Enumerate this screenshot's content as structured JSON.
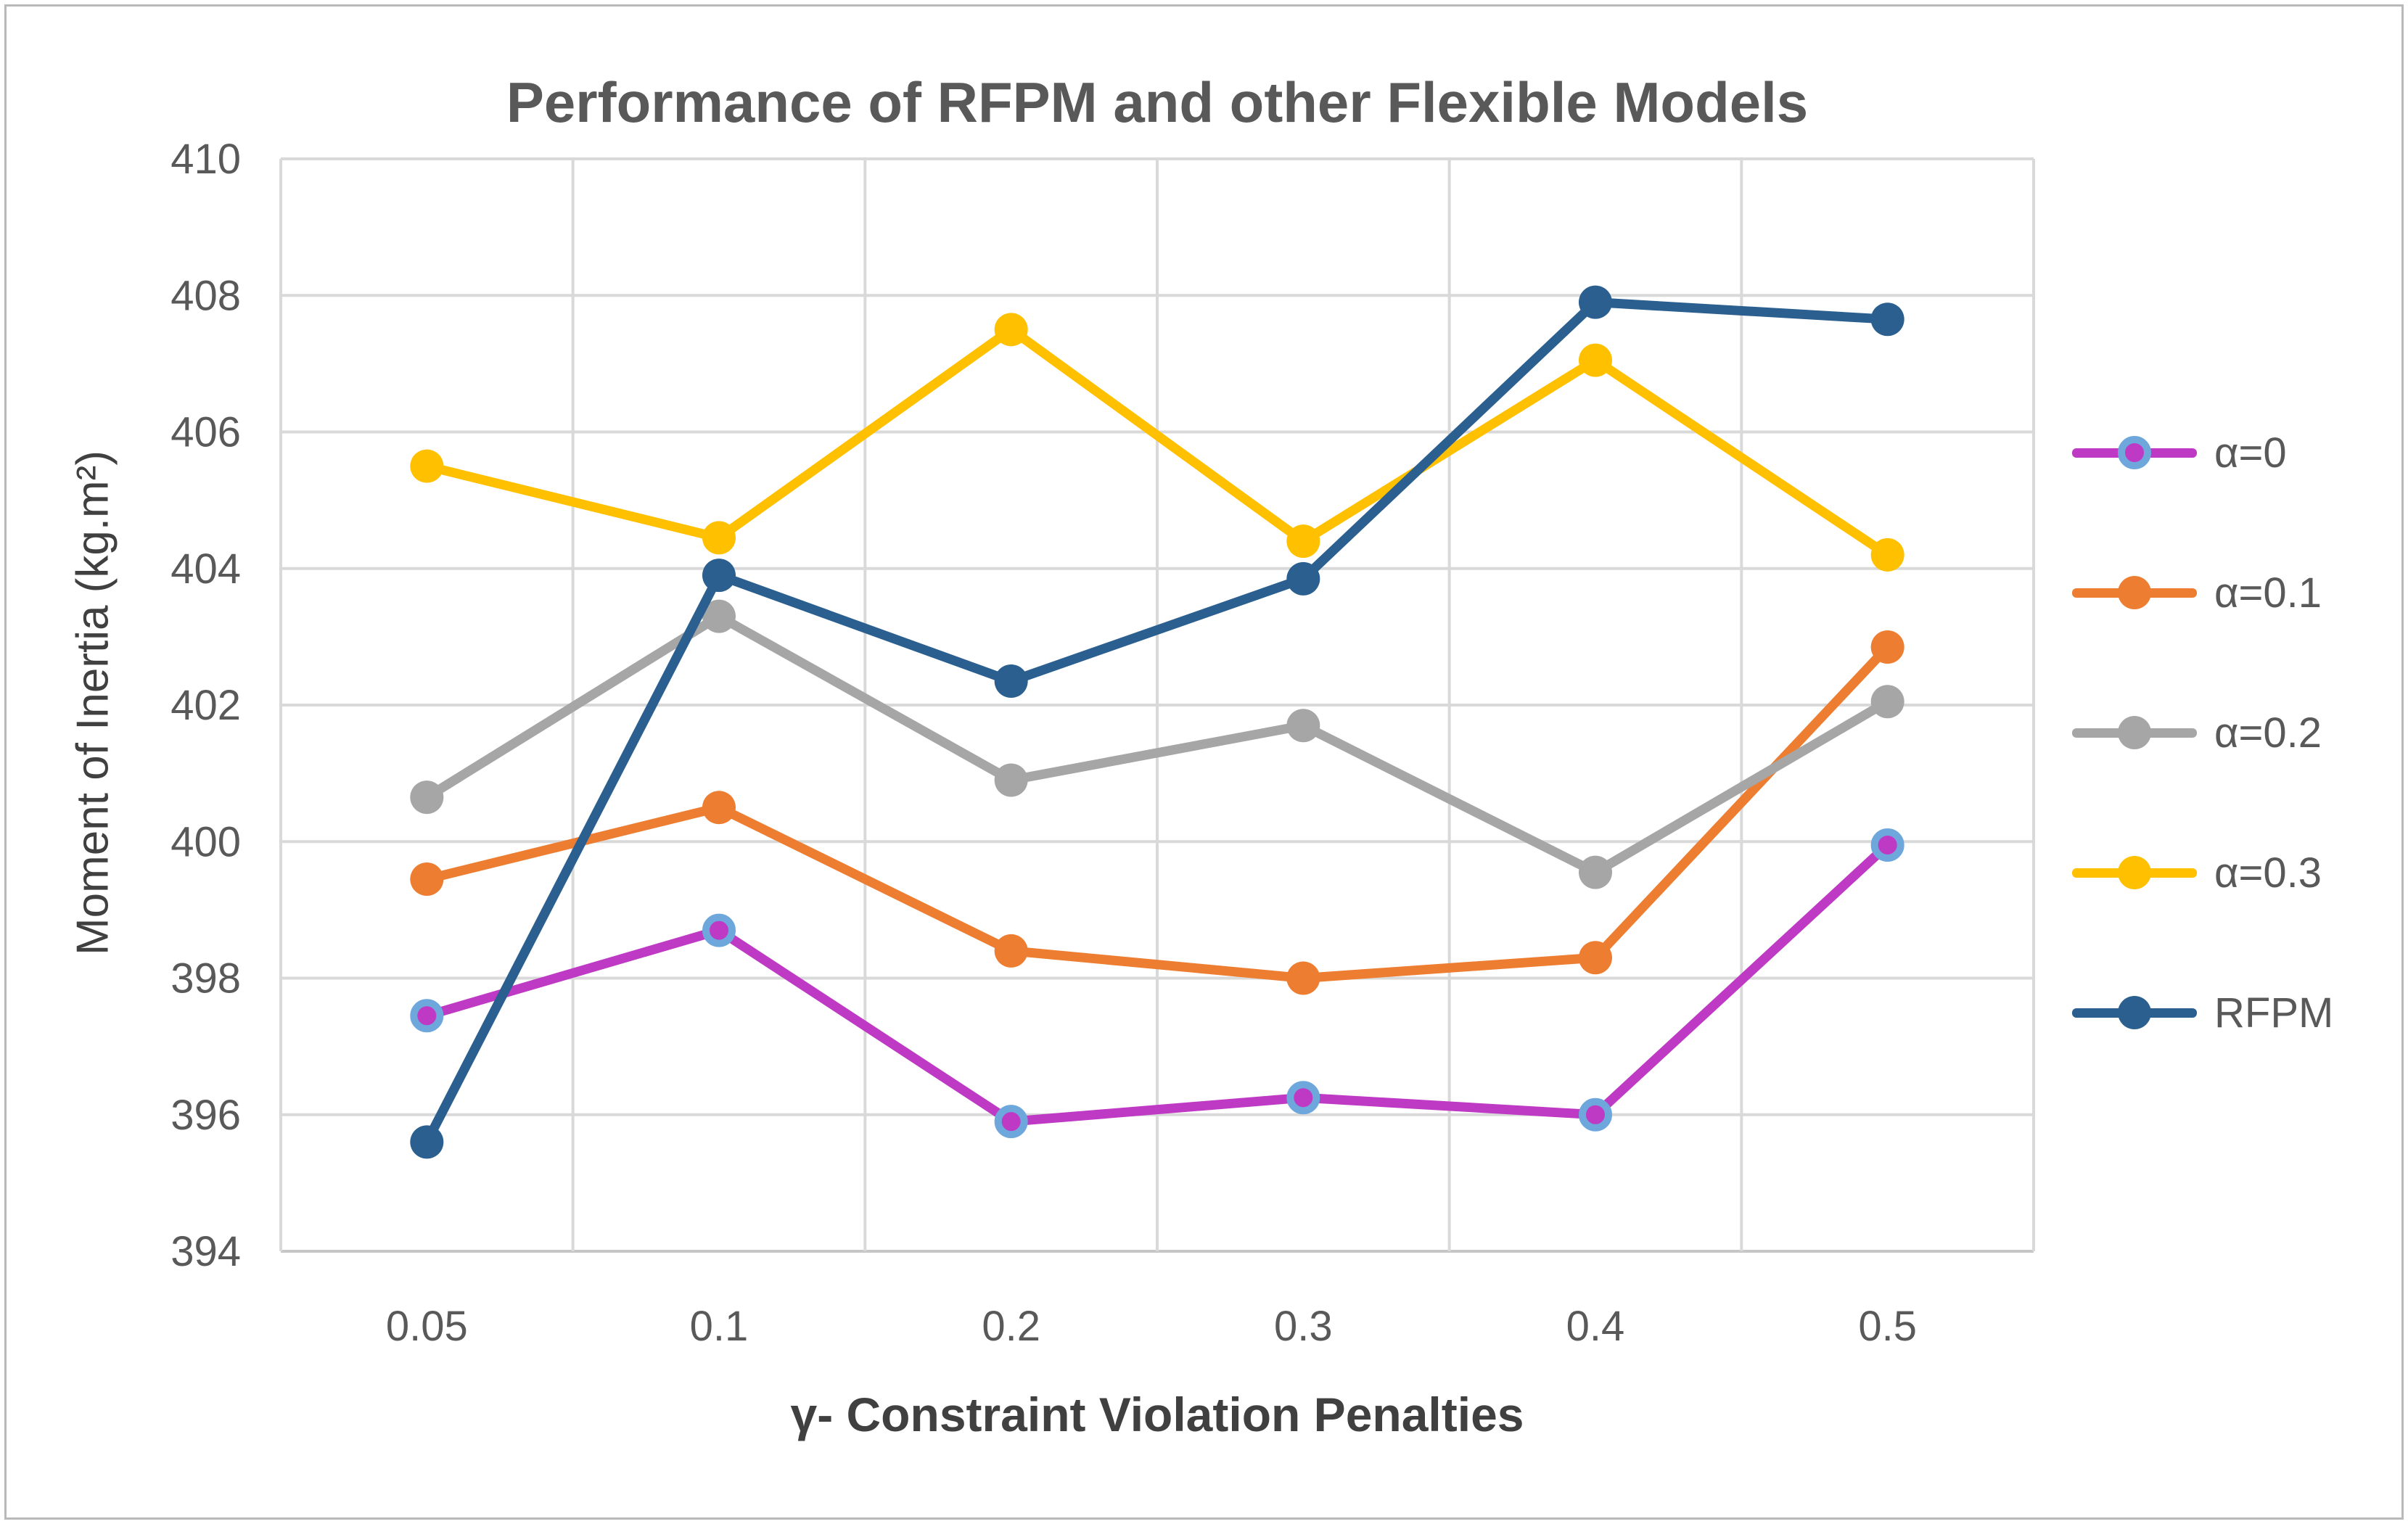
{
  "chart_data": {
    "type": "line",
    "title": "Performance of RFPM and other Flexible Models",
    "xlabel": "γ- Constraint Violation Penalties",
    "ylabel": "Moment of Inertia (kg.m²)",
    "categories": [
      "0.05",
      "0.1",
      "0.2",
      "0.3",
      "0.4",
      "0.5"
    ],
    "ylim": [
      394,
      410
    ],
    "ytick_step": 2,
    "grid": true,
    "legend_position": "right",
    "series": [
      {
        "name": "α=0",
        "color": "#BF3AC4",
        "marker_outline": "#6DA7DC",
        "values": [
          397.45,
          398.7,
          395.9,
          396.25,
          396.0,
          399.95
        ]
      },
      {
        "name": "α=0.1",
        "color": "#ED7D31",
        "values": [
          399.45,
          400.5,
          398.4,
          398.0,
          398.3,
          402.85
        ]
      },
      {
        "name": "α=0.2",
        "color": "#A6A6A6",
        "values": [
          400.65,
          403.3,
          400.9,
          401.7,
          399.55,
          402.05
        ]
      },
      {
        "name": "α=0.3",
        "color": "#FFC000",
        "values": [
          405.5,
          404.45,
          407.5,
          404.4,
          407.05,
          404.2
        ]
      },
      {
        "name": "RFPM",
        "color": "#2A5F8F",
        "values": [
          395.6,
          403.9,
          402.35,
          403.85,
          407.9,
          407.65
        ]
      }
    ]
  },
  "colors": {
    "gridline": "#D9D9D9",
    "axis_line": "#C6C6C6",
    "tick_text": "#595959",
    "title_text": "#595959",
    "axis_title_text": "#404040",
    "figure_border": "#B9B9B9"
  }
}
